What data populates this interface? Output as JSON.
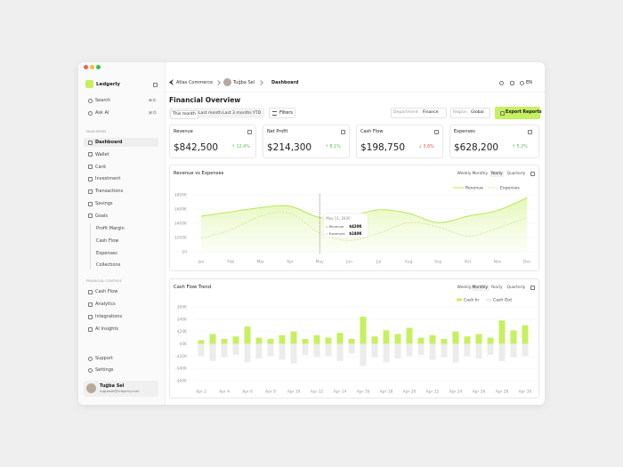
{
  "sidebar": {
    "brand": "Ledgerly",
    "search": {
      "label": "Search",
      "shortcut": "⌘ K"
    },
    "ask_ai": {
      "label": "Ask AI",
      "shortcut": "⌘ O"
    },
    "main_menu": {
      "heading": "MAIN MENU",
      "items": [
        "Dashboard",
        "Wallet",
        "Card",
        "Investment",
        "Transactions",
        "Savings",
        "Goals"
      ],
      "goals_sub": [
        "Profit Margin",
        "Cash Flow",
        "Expenses",
        "Collections"
      ]
    },
    "financial_control": {
      "heading": "FINANCIAL CONTROL",
      "items": [
        "Cash Flow",
        "Analytics",
        "Integrations",
        "AI Insights"
      ]
    },
    "footer_items": [
      "Support",
      "Settings"
    ],
    "user": {
      "name": "Tuğba Sel",
      "email": "tugbasel@ledgerly.com"
    }
  },
  "topbar": {
    "breadcrumb": [
      "Atlas Commerce",
      "Tuğba Sel",
      "Dashboard"
    ],
    "language": "EN"
  },
  "page_title": "Financial Overview",
  "periods": [
    "This month",
    "Last month",
    "Last 3 months",
    "YTD"
  ],
  "filters": "Filters",
  "department": {
    "label": "Department",
    "value": "Finance"
  },
  "region": {
    "label": "Region",
    "value": "Global"
  },
  "export": "Export Reports",
  "kpis": [
    {
      "label": "Revenue",
      "value": "$842,500",
      "change": "↑ 12.4%"
    },
    {
      "label": "Net Profit",
      "value": "$214,300",
      "change": "↑ 8.1%"
    },
    {
      "label": "Cash Flow",
      "value": "$198,750",
      "change": "↓ 3.6%"
    },
    {
      "label": "Expenses",
      "value": "$628,200",
      "change": "↑ 5.2%"
    }
  ],
  "charts": {
    "revenue_vs_expenses": {
      "type": "line",
      "title": "Revenue vs Expenses",
      "ranges": [
        "Weekly",
        "Monthly",
        "Yearly",
        "Quarterly"
      ],
      "active_range": 2,
      "categories": [
        "Jan",
        "Feb",
        "Mar",
        "Apr",
        "May",
        "Jun",
        "Jul",
        "Aug",
        "Sep",
        "Oct",
        "Nov",
        "Dec"
      ],
      "series": [
        {
          "name": "Revenue",
          "color": "#b7e34c",
          "values": [
            500000,
            560000,
            620000,
            640000,
            480000,
            500000,
            590000,
            540000,
            410000,
            500000,
            580000,
            760000
          ]
        },
        {
          "name": "Expenses",
          "color": "#d3ec9a",
          "dashed": true,
          "values": [
            190000,
            310000,
            500000,
            540000,
            260000,
            160000,
            260000,
            410000,
            350000,
            220000,
            330000,
            480000
          ]
        }
      ],
      "ylim": [
        0,
        800000
      ],
      "yticks": [
        {
          "value": 800000,
          "label": "$800K"
        },
        {
          "value": 600000,
          "label": "$600K"
        },
        {
          "value": 400000,
          "label": "$400K"
        },
        {
          "value": 200000,
          "label": "$200K"
        },
        {
          "value": 0,
          "label": "$0"
        }
      ],
      "tooltip": {
        "date": "May 11, 2020",
        "rows": [
          {
            "name": "Revenue",
            "value": "$420K"
          },
          {
            "name": "Expenses",
            "value": "$240K"
          }
        ]
      }
    },
    "cash_flow_trend": {
      "type": "bar",
      "title": "Cash Flow Trend",
      "ranges": [
        "Weekly",
        "Monthly",
        "Yearly",
        "Quarterly"
      ],
      "active_range": 1,
      "categories": [
        "Apr 2",
        null,
        "Apr 4",
        null,
        "Apr 6",
        null,
        "Apr 8",
        null,
        "Apr 10",
        null,
        "Apr 12",
        null,
        "Apr 14",
        null,
        "Apr 16",
        null,
        "Apr 18",
        null,
        "Apr 20",
        null,
        "Apr 22",
        null,
        "Apr 24",
        null,
        "Apr 26",
        null,
        "Apr 28",
        null,
        "Apr 30"
      ],
      "series": [
        {
          "name": "Cash In",
          "color": "#c6f060",
          "values": [
            6000,
            16000,
            8000,
            12000,
            28000,
            10000,
            8000,
            14000,
            20000,
            8000,
            14000,
            10000,
            18000,
            8000,
            44000,
            12000,
            22000,
            16000,
            26000,
            10000,
            14000,
            8000,
            20000,
            12000,
            16000,
            10000,
            38000,
            22000,
            30000
          ]
        },
        {
          "name": "Cash Out",
          "color": "#ececec",
          "values": [
            -20000,
            -28000,
            -22000,
            -18000,
            -30000,
            -24000,
            -20000,
            -26000,
            -32000,
            -18000,
            -22000,
            -20000,
            -28000,
            -16000,
            -36000,
            -22000,
            -30000,
            -24000,
            -20000,
            -18000,
            -26000,
            -22000,
            -30000,
            -20000,
            -24000,
            -18000,
            -28000,
            -22000,
            -20000
          ]
        }
      ],
      "ylim": [
        -60000,
        60000
      ],
      "yticks": [
        {
          "value": 60000,
          "label": "$60K"
        },
        {
          "value": 40000,
          "label": "$40K"
        },
        {
          "value": 20000,
          "label": "$20K"
        },
        {
          "value": 0,
          "label": "$0K"
        },
        {
          "value": -20000,
          "label": "-$20K"
        },
        {
          "value": -40000,
          "label": "-$40K"
        },
        {
          "value": -60000,
          "label": "-$60K"
        }
      ]
    }
  }
}
